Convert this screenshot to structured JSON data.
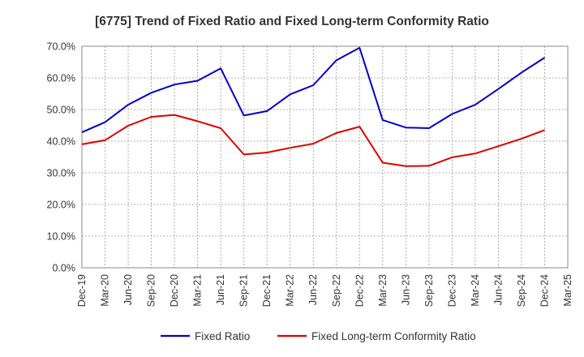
{
  "chart_data": {
    "type": "line",
    "title": "[6775]  Trend of Fixed Ratio and Fixed Long-term Conformity Ratio",
    "xlabel": "",
    "ylabel": "",
    "x_tick_labels": [
      "Dec-19",
      "Mar-20",
      "Jun-20",
      "Sep-20",
      "Dec-20",
      "Mar-21",
      "Jun-21",
      "Sep-21",
      "Dec-21",
      "Mar-22",
      "Jun-22",
      "Sep-22",
      "Dec-22",
      "Mar-23",
      "Jun-23",
      "Sep-23",
      "Dec-23",
      "Mar-24",
      "Jun-24",
      "Sep-24",
      "Dec-24",
      "Mar-25"
    ],
    "y_tick_labels": [
      "0.0%",
      "10.0%",
      "20.0%",
      "30.0%",
      "40.0%",
      "50.0%",
      "60.0%",
      "70.0%"
    ],
    "ylim": [
      0,
      70
    ],
    "grid": true,
    "legend_position": "bottom",
    "categories": [
      "Dec-19",
      "Mar-20",
      "Jun-20",
      "Sep-20",
      "Dec-20",
      "Mar-21",
      "Jun-21",
      "Sep-21",
      "Dec-21",
      "Mar-22",
      "Jun-22",
      "Sep-22",
      "Dec-22",
      "Mar-23",
      "Jun-23",
      "Sep-23",
      "Dec-23",
      "Mar-24",
      "Jun-24",
      "Sep-24",
      "Dec-24"
    ],
    "series": [
      {
        "name": "Fixed Ratio",
        "color": "#0000cc",
        "values": [
          42.8,
          46.0,
          51.5,
          55.3,
          57.9,
          59.1,
          63.0,
          48.1,
          49.5,
          54.8,
          57.7,
          65.6,
          69.5,
          46.7,
          44.3,
          44.1,
          48.6,
          51.5,
          56.5,
          61.7,
          66.4
        ]
      },
      {
        "name": "Fixed Long-term Conformity Ratio",
        "color": "#dd0000",
        "values": [
          39.0,
          40.3,
          44.9,
          47.7,
          48.3,
          46.3,
          44.1,
          35.8,
          36.4,
          37.9,
          39.2,
          42.6,
          44.6,
          33.2,
          32.1,
          32.2,
          34.9,
          36.1,
          38.4,
          40.8,
          43.5
        ]
      }
    ]
  }
}
